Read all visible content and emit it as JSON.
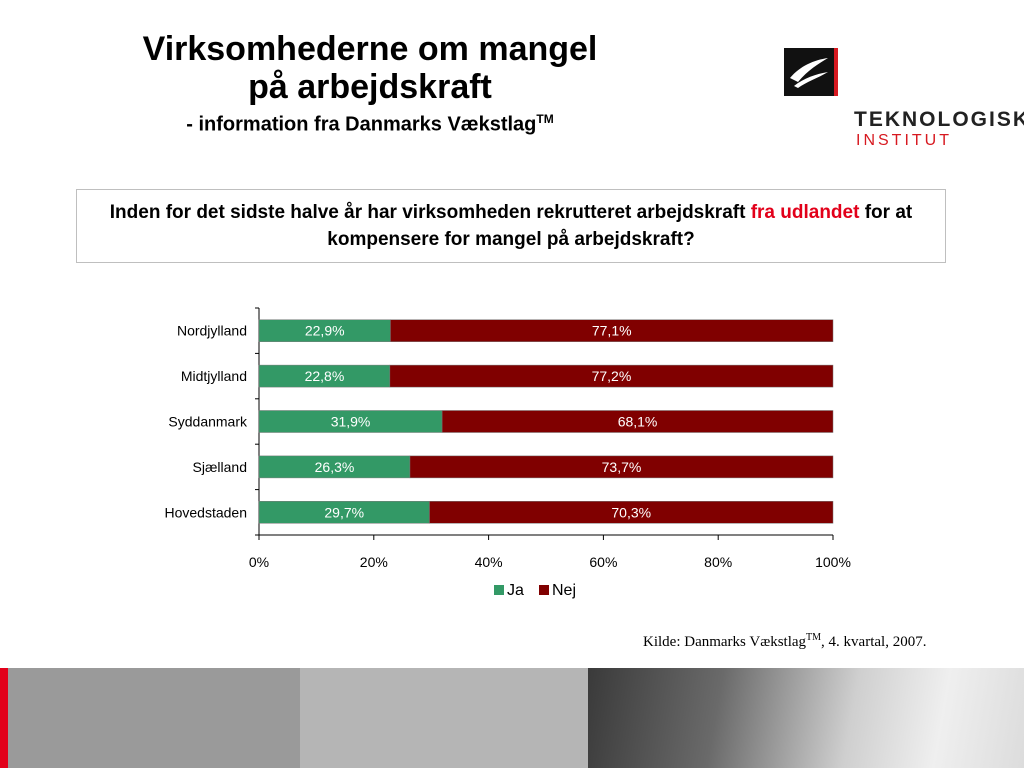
{
  "slide": {
    "title_line1": "Virksomhederne om mangel",
    "title_line2": "på arbejdskraft",
    "subtitle": "- information fra Danmarks Vækstlag",
    "subtitle_tm": "TM",
    "logo": {
      "line1": "TEKNOLOGISK",
      "line2": "INSTITUT"
    },
    "question_part1": "Inden for det sidste halve år har virksomheden rekrutteret arbejdskraft ",
    "question_highlight": "fra udlandet",
    "question_part2": " for at kompensere for mangel på arbejdskraft?",
    "source_part1": "Kilde: Danmarks Vækstlag",
    "source_tm": "TM",
    "source_part2": ", 4. kvartal, 2007."
  },
  "colors": {
    "ja": "#339966",
    "nej": "#800000",
    "highlight": "#e2001a"
  },
  "chart_data": {
    "type": "bar",
    "orientation": "horizontal",
    "stacked": true,
    "categories": [
      "Nordjylland",
      "Midtjylland",
      "Syddanmark",
      "Sjælland",
      "Hovedstaden"
    ],
    "series": [
      {
        "name": "Ja",
        "values": [
          22.9,
          22.8,
          31.9,
          26.3,
          29.7
        ],
        "labels": [
          "22,9%",
          "22,8%",
          "31,9%",
          "26,3%",
          "29,7%"
        ]
      },
      {
        "name": "Nej",
        "values": [
          77.1,
          77.2,
          68.1,
          73.7,
          70.3
        ],
        "labels": [
          "77,1%",
          "77,2%",
          "68,1%",
          "73,7%",
          "70,3%"
        ]
      }
    ],
    "xlim": [
      0,
      100
    ],
    "xticks": [
      "0%",
      "20%",
      "40%",
      "60%",
      "80%",
      "100%"
    ],
    "grid": false,
    "legend": "bottom"
  }
}
